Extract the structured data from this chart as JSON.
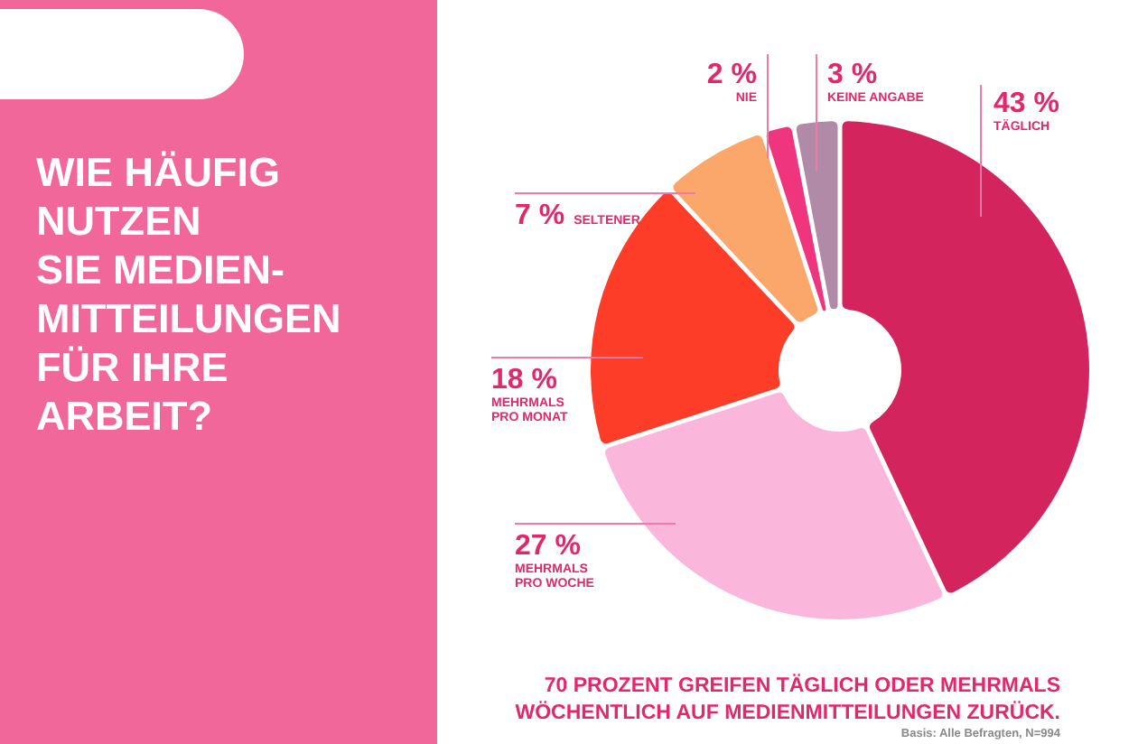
{
  "chart_data": {
    "type": "donut",
    "title": "WIE HÄUFIG\nNUTZEN\nSIE MEDIEN-\nMITTEILUNGEN\nFÜR IHRE\nARBEIT?",
    "categories": [
      "TÄGLICH",
      "MEHRMALS\nPRO WOCHE",
      "MEHRMALS\nPRO MONAT",
      "SELTENER",
      "NIE",
      "KEINE ANGABE"
    ],
    "values": [
      43,
      27,
      18,
      7,
      2,
      3
    ],
    "colors": [
      "#d4245e",
      "#fbb6dc",
      "#fd3d28",
      "#fba66a",
      "#f0357f",
      "#b08aa6"
    ],
    "value_labels": [
      "43 %",
      "27 %",
      "18 %",
      "7 %",
      "2 %",
      "3 %"
    ],
    "annotations": [
      "70 PROZENT GREIFEN TÄGLICH ODER MEHRMALS\nWÖCHENTLICH AUF MEDIENMITTEILUNGEN ZURÜCK.",
      "Basis: Alle Befragten, N=994"
    ]
  }
}
